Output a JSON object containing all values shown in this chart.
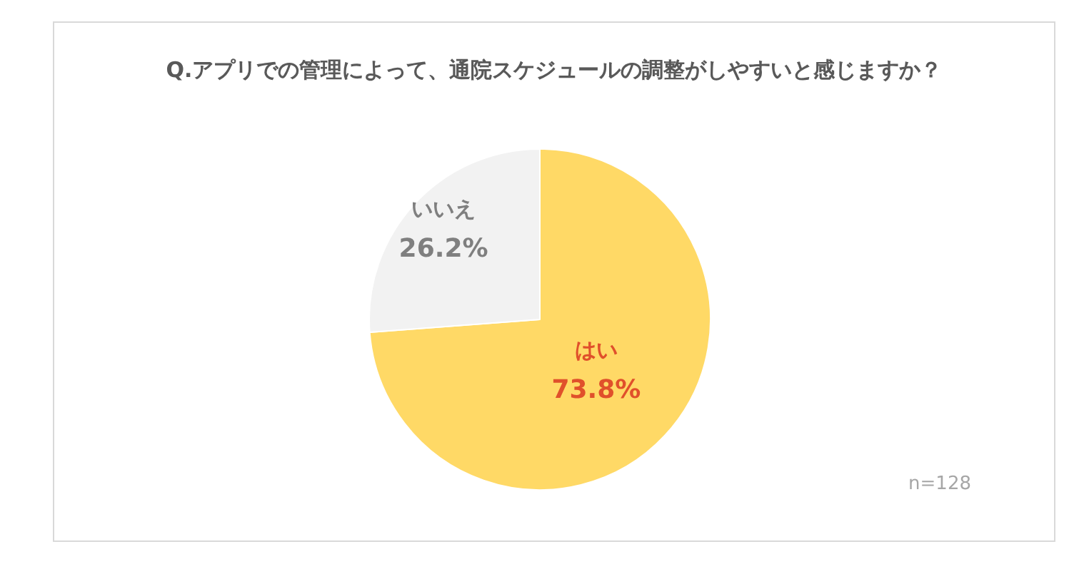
{
  "chart_data": {
    "type": "pie",
    "title": "Q.アプリでの管理によって、通院スケジュールの調整がしやすいと感じますか？",
    "categories": [
      "はい",
      "いいえ"
    ],
    "values": [
      73.8,
      26.2
    ],
    "colors": [
      "#ffd966",
      "#f2f2f2"
    ],
    "value_labels": [
      "73.8%",
      "26.2%"
    ],
    "annotations": [
      "n=128"
    ]
  }
}
